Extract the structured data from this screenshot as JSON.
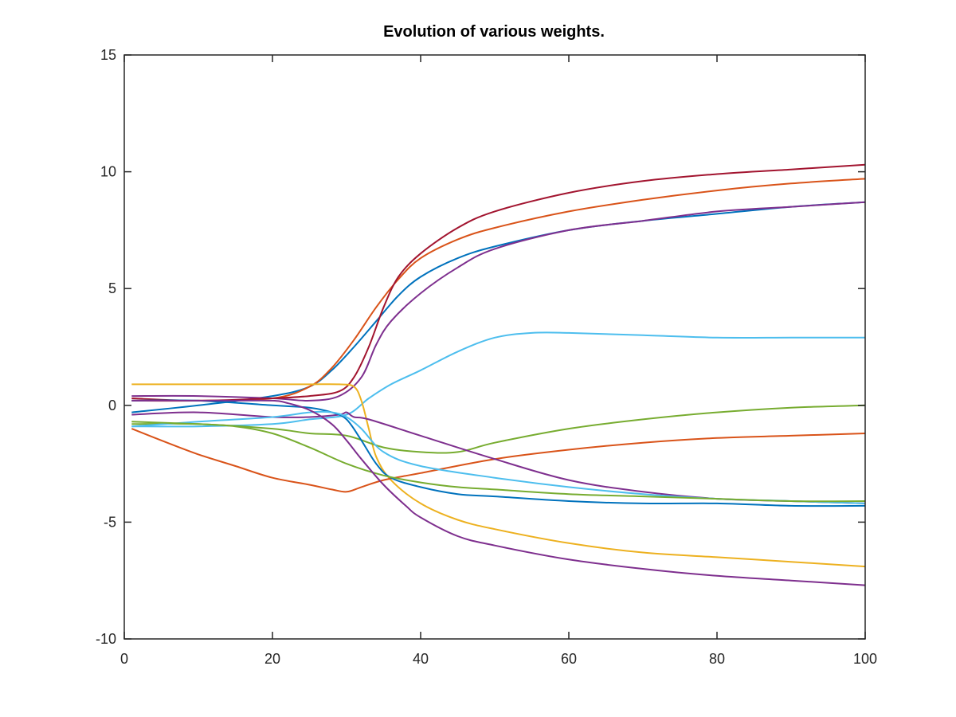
{
  "chart_data": {
    "type": "line",
    "title": "Evolution of various weights.",
    "xlabel": "",
    "ylabel": "",
    "xlim": [
      0,
      100
    ],
    "ylim": [
      -10,
      15
    ],
    "x_ticks": [
      0,
      20,
      40,
      60,
      80,
      100
    ],
    "x_tick_labels": [
      "0",
      "20",
      "40",
      "60",
      "80",
      "100"
    ],
    "y_ticks": [
      -10,
      -5,
      0,
      5,
      10,
      15
    ],
    "y_tick_labels": [
      "-10",
      "-5",
      "0",
      "5",
      "10",
      "15"
    ],
    "grid": false,
    "legend": "none",
    "series": [
      {
        "color": "#0072bd",
        "points": [
          [
            1,
            -0.3
          ],
          [
            10,
            0.0
          ],
          [
            20,
            0.4
          ],
          [
            25,
            0.8
          ],
          [
            28,
            1.5
          ],
          [
            31,
            2.5
          ],
          [
            34,
            3.6
          ],
          [
            37,
            4.7
          ],
          [
            40,
            5.5
          ],
          [
            45,
            6.3
          ],
          [
            50,
            6.8
          ],
          [
            60,
            7.5
          ],
          [
            70,
            7.9
          ],
          [
            80,
            8.2
          ],
          [
            90,
            8.5
          ],
          [
            100,
            8.7
          ]
        ]
      },
      {
        "color": "#d95319",
        "points": [
          [
            1,
            0.2
          ],
          [
            10,
            0.2
          ],
          [
            20,
            0.3
          ],
          [
            25,
            0.8
          ],
          [
            28,
            1.6
          ],
          [
            31,
            2.8
          ],
          [
            34,
            4.2
          ],
          [
            37,
            5.4
          ],
          [
            40,
            6.3
          ],
          [
            45,
            7.1
          ],
          [
            50,
            7.6
          ],
          [
            60,
            8.3
          ],
          [
            70,
            8.8
          ],
          [
            80,
            9.2
          ],
          [
            90,
            9.5
          ],
          [
            100,
            9.7
          ]
        ]
      },
      {
        "color": "#7e2f8e",
        "points": [
          [
            1,
            0.4
          ],
          [
            10,
            0.4
          ],
          [
            20,
            0.3
          ],
          [
            25,
            0.2
          ],
          [
            29,
            0.4
          ],
          [
            32,
            1.2
          ],
          [
            34,
            2.6
          ],
          [
            36,
            3.6
          ],
          [
            40,
            4.8
          ],
          [
            45,
            5.9
          ],
          [
            50,
            6.7
          ],
          [
            60,
            7.5
          ],
          [
            70,
            7.9
          ],
          [
            80,
            8.3
          ],
          [
            90,
            8.5
          ],
          [
            100,
            8.7
          ]
        ]
      },
      {
        "color": "#a2142f",
        "points": [
          [
            1,
            0.3
          ],
          [
            10,
            0.2
          ],
          [
            20,
            0.3
          ],
          [
            25,
            0.4
          ],
          [
            29,
            0.6
          ],
          [
            31,
            1.2
          ],
          [
            33,
            2.5
          ],
          [
            35,
            4.2
          ],
          [
            37,
            5.5
          ],
          [
            40,
            6.5
          ],
          [
            45,
            7.6
          ],
          [
            50,
            8.3
          ],
          [
            60,
            9.1
          ],
          [
            70,
            9.6
          ],
          [
            80,
            9.9
          ],
          [
            90,
            10.1
          ],
          [
            100,
            10.3
          ]
        ]
      },
      {
        "color": "#4dbeee",
        "points": [
          [
            1,
            -0.9
          ],
          [
            10,
            -0.9
          ],
          [
            20,
            -0.8
          ],
          [
            25,
            -0.6
          ],
          [
            30,
            -0.4
          ],
          [
            33,
            0.3
          ],
          [
            36,
            0.9
          ],
          [
            40,
            1.5
          ],
          [
            45,
            2.3
          ],
          [
            50,
            2.9
          ],
          [
            55,
            3.1
          ],
          [
            60,
            3.1
          ],
          [
            70,
            3.0
          ],
          [
            80,
            2.9
          ],
          [
            90,
            2.9
          ],
          [
            100,
            2.9
          ]
        ]
      },
      {
        "color": "#edb120",
        "points": [
          [
            1,
            0.9
          ],
          [
            10,
            0.9
          ],
          [
            20,
            0.9
          ],
          [
            25,
            0.9
          ],
          [
            29,
            0.9
          ],
          [
            31,
            0.8
          ],
          [
            32,
            0.2
          ],
          [
            33,
            -1.0
          ],
          [
            34,
            -2.2
          ],
          [
            36,
            -3.2
          ],
          [
            40,
            -4.2
          ],
          [
            45,
            -4.9
          ],
          [
            50,
            -5.3
          ],
          [
            60,
            -5.9
          ],
          [
            70,
            -6.3
          ],
          [
            80,
            -6.5
          ],
          [
            90,
            -6.7
          ],
          [
            100,
            -6.9
          ]
        ]
      },
      {
        "color": "#77ac30",
        "points": [
          [
            1,
            -0.8
          ],
          [
            10,
            -0.8
          ],
          [
            20,
            -1.0
          ],
          [
            25,
            -1.2
          ],
          [
            30,
            -1.3
          ],
          [
            35,
            -1.8
          ],
          [
            40,
            -2.0
          ],
          [
            45,
            -2.0
          ],
          [
            50,
            -1.6
          ],
          [
            60,
            -1.0
          ],
          [
            70,
            -0.6
          ],
          [
            80,
            -0.3
          ],
          [
            90,
            -0.1
          ],
          [
            100,
            0.0
          ]
        ]
      },
      {
        "color": "#d95319",
        "points": [
          [
            1,
            -1.0
          ],
          [
            5,
            -1.5
          ],
          [
            10,
            -2.1
          ],
          [
            15,
            -2.6
          ],
          [
            20,
            -3.1
          ],
          [
            25,
            -3.4
          ],
          [
            28,
            -3.6
          ],
          [
            30,
            -3.7
          ],
          [
            32,
            -3.5
          ],
          [
            35,
            -3.2
          ],
          [
            40,
            -2.9
          ],
          [
            50,
            -2.3
          ],
          [
            60,
            -1.9
          ],
          [
            70,
            -1.6
          ],
          [
            80,
            -1.4
          ],
          [
            90,
            -1.3
          ],
          [
            100,
            -1.2
          ]
        ]
      },
      {
        "color": "#7e2f8e",
        "points": [
          [
            1,
            -0.4
          ],
          [
            10,
            -0.3
          ],
          [
            20,
            -0.5
          ],
          [
            25,
            -0.5
          ],
          [
            29,
            -0.4
          ],
          [
            30,
            -0.3
          ],
          [
            31,
            -0.5
          ],
          [
            33,
            -0.6
          ],
          [
            40,
            -1.3
          ],
          [
            50,
            -2.3
          ],
          [
            60,
            -3.2
          ],
          [
            70,
            -3.7
          ],
          [
            80,
            -4.0
          ],
          [
            90,
            -4.1
          ],
          [
            100,
            -4.2
          ]
        ]
      },
      {
        "color": "#0072bd",
        "points": [
          [
            1,
            0.2
          ],
          [
            10,
            0.2
          ],
          [
            20,
            0.0
          ],
          [
            25,
            -0.1
          ],
          [
            28,
            -0.3
          ],
          [
            30,
            -0.6
          ],
          [
            32,
            -1.5
          ],
          [
            34,
            -2.5
          ],
          [
            36,
            -3.1
          ],
          [
            40,
            -3.5
          ],
          [
            45,
            -3.8
          ],
          [
            50,
            -3.9
          ],
          [
            60,
            -4.1
          ],
          [
            70,
            -4.2
          ],
          [
            80,
            -4.2
          ],
          [
            90,
            -4.3
          ],
          [
            100,
            -4.3
          ]
        ]
      },
      {
        "color": "#4dbeee",
        "points": [
          [
            1,
            -0.9
          ],
          [
            10,
            -0.7
          ],
          [
            20,
            -0.5
          ],
          [
            25,
            -0.3
          ],
          [
            28,
            -0.3
          ],
          [
            30,
            -0.5
          ],
          [
            32,
            -1.0
          ],
          [
            35,
            -2.0
          ],
          [
            40,
            -2.6
          ],
          [
            50,
            -3.1
          ],
          [
            60,
            -3.5
          ],
          [
            70,
            -3.8
          ],
          [
            80,
            -4.0
          ],
          [
            90,
            -4.1
          ],
          [
            100,
            -4.2
          ]
        ]
      },
      {
        "color": "#77ac30",
        "points": [
          [
            1,
            -0.7
          ],
          [
            10,
            -0.8
          ],
          [
            15,
            -0.9
          ],
          [
            20,
            -1.2
          ],
          [
            25,
            -1.8
          ],
          [
            30,
            -2.5
          ],
          [
            35,
            -3.0
          ],
          [
            40,
            -3.3
          ],
          [
            45,
            -3.5
          ],
          [
            50,
            -3.6
          ],
          [
            60,
            -3.8
          ],
          [
            70,
            -3.9
          ],
          [
            80,
            -4.0
          ],
          [
            90,
            -4.1
          ],
          [
            100,
            -4.1
          ]
        ]
      },
      {
        "color": "#7e2f8e",
        "points": [
          [
            1,
            0.2
          ],
          [
            10,
            0.2
          ],
          [
            15,
            0.2
          ],
          [
            20,
            0.2
          ],
          [
            22,
            0.1
          ],
          [
            25,
            -0.2
          ],
          [
            28,
            -0.8
          ],
          [
            30,
            -1.5
          ],
          [
            32,
            -2.3
          ],
          [
            35,
            -3.4
          ],
          [
            38,
            -4.3
          ],
          [
            40,
            -4.8
          ],
          [
            45,
            -5.6
          ],
          [
            50,
            -6.0
          ],
          [
            60,
            -6.6
          ],
          [
            70,
            -7.0
          ],
          [
            80,
            -7.3
          ],
          [
            90,
            -7.5
          ],
          [
            100,
            -7.7
          ]
        ]
      }
    ]
  }
}
